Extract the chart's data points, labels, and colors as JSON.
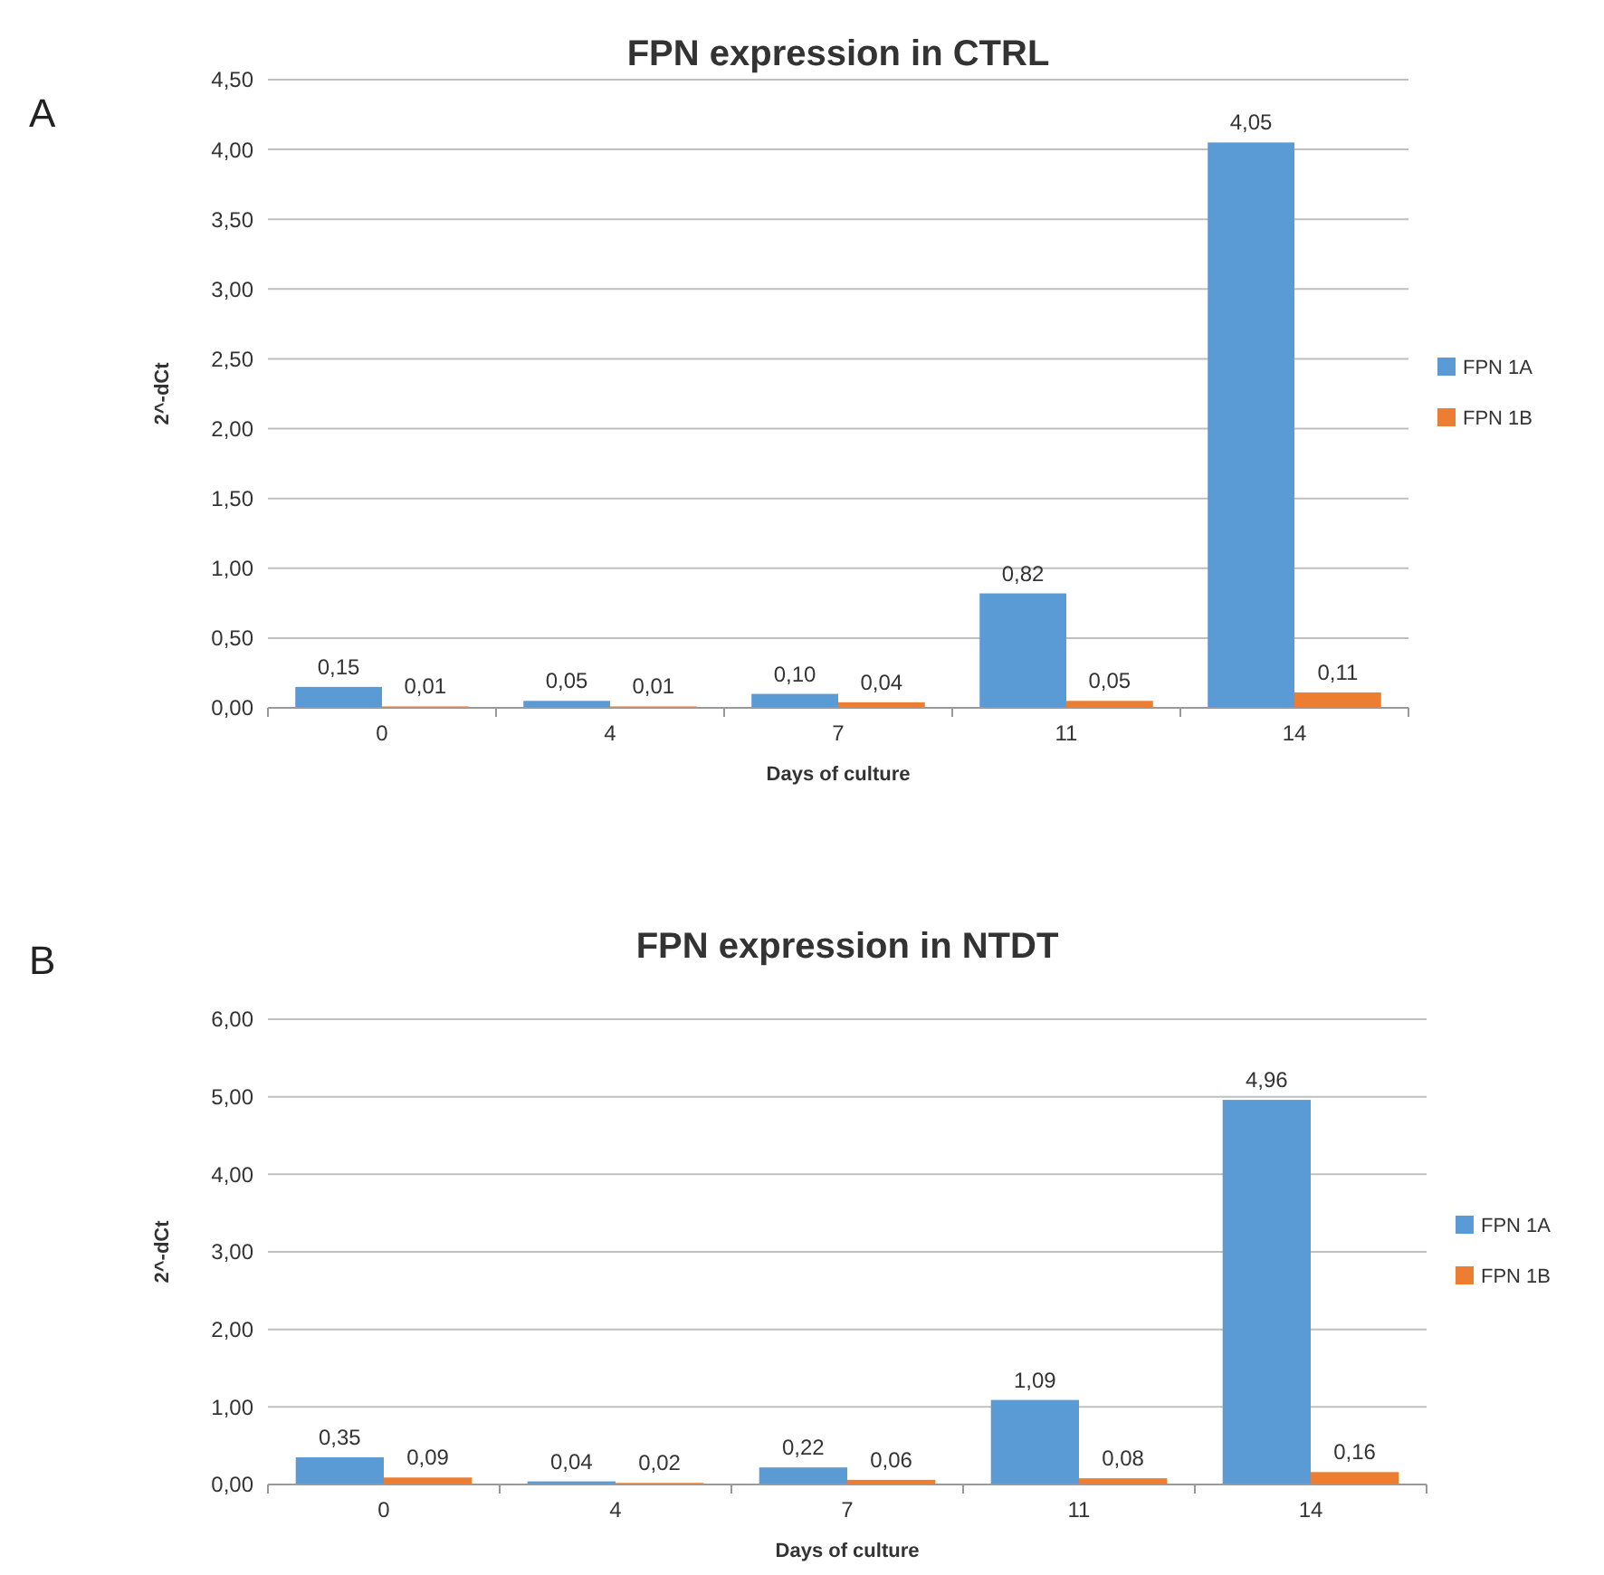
{
  "chart_data": [
    {
      "type": "bar",
      "title": "FPN expression in CTRL",
      "xlabel": "Days of culture",
      "ylabel": "2^-dCt",
      "annotations": [
        "A"
      ],
      "categories": [
        "0",
        "4",
        "7",
        "11",
        "14"
      ],
      "series": [
        {
          "name": "FPN 1A",
          "color": "#5b9bd5",
          "values": [
            0.15,
            0.05,
            0.1,
            0.82,
            4.05
          ],
          "value_labels": [
            "0,15",
            "0,05",
            "0,10",
            "0,82",
            "4,05"
          ]
        },
        {
          "name": "FPN 1B",
          "color": "#ed7d31",
          "values": [
            0.01,
            0.01,
            0.04,
            0.05,
            0.11
          ],
          "value_labels": [
            "0,01",
            "0,01",
            "0,04",
            "0,05",
            "0,11"
          ]
        }
      ],
      "ylim": [
        0,
        4.5
      ],
      "yticks": [
        {
          "value": 0,
          "label": "0,00"
        },
        {
          "value": 0.5,
          "label": "0,50"
        },
        {
          "value": 1,
          "label": "1,00"
        },
        {
          "value": 1.5,
          "label": "1,50"
        },
        {
          "value": 2,
          "label": "2,00"
        },
        {
          "value": 2.5,
          "label": "2,50"
        },
        {
          "value": 3,
          "label": "3,00"
        },
        {
          "value": 3.5,
          "label": "3,50"
        },
        {
          "value": 4,
          "label": "4,00"
        },
        {
          "value": 4.5,
          "label": "4,50"
        }
      ],
      "grid": "y",
      "legend": "right"
    },
    {
      "type": "bar",
      "title": "FPN expression in NTDT",
      "xlabel": "Days of culture",
      "ylabel": "2^-dCt",
      "annotations": [
        "B"
      ],
      "categories": [
        "0",
        "4",
        "7",
        "11",
        "14"
      ],
      "series": [
        {
          "name": "FPN 1A",
          "color": "#5b9bd5",
          "values": [
            0.35,
            0.04,
            0.22,
            1.09,
            4.96
          ],
          "value_labels": [
            "0,35",
            "0,04",
            "0,22",
            "1,09",
            "4,96"
          ]
        },
        {
          "name": "FPN 1B",
          "color": "#ed7d31",
          "values": [
            0.09,
            0.02,
            0.06,
            0.08,
            0.16
          ],
          "value_labels": [
            "0,09",
            "0,02",
            "0,06",
            "0,08",
            "0,16"
          ]
        }
      ],
      "ylim": [
        0,
        6
      ],
      "yticks": [
        {
          "value": 0,
          "label": "0,00"
        },
        {
          "value": 1,
          "label": "1,00"
        },
        {
          "value": 2,
          "label": "2,00"
        },
        {
          "value": 3,
          "label": "3,00"
        },
        {
          "value": 4,
          "label": "4,00"
        },
        {
          "value": 5,
          "label": "5,00"
        },
        {
          "value": 6,
          "label": "6,00"
        }
      ],
      "grid": "y",
      "legend": "right"
    }
  ]
}
